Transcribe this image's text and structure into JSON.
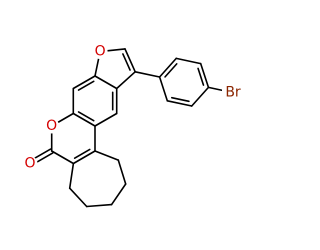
{
  "atom_labels": [
    "O",
    "O",
    "O",
    "Br"
  ]
}
